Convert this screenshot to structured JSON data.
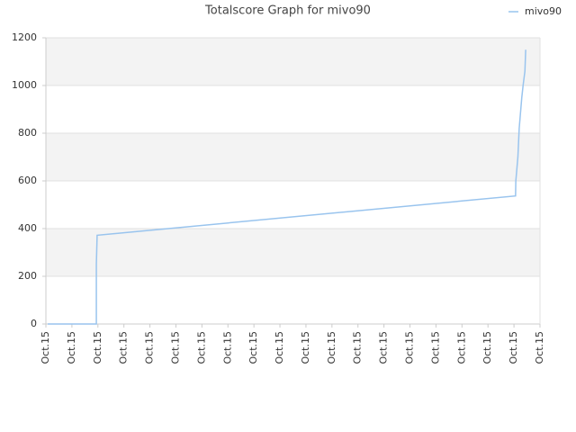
{
  "chart_data": {
    "type": "line",
    "title": "Totalscore Graph for mivo90",
    "x": [
      0.07,
      1.94,
      1.94,
      1.97,
      18.06,
      18.07,
      18.15,
      18.2,
      18.3,
      18.35,
      18.42,
      18.45
    ],
    "series": [
      {
        "name": "mivo90",
        "color": "#99c4ee",
        "values": [
          0,
          0,
          250,
          372,
          537,
          600,
          700,
          820,
          950,
          1000,
          1060,
          1150
        ]
      }
    ],
    "xlim": [
      0,
      19
    ],
    "xticks": [
      {
        "value": 0,
        "label": "Oct.15"
      },
      {
        "value": 1,
        "label": "Oct.15"
      },
      {
        "value": 2,
        "label": "Oct.15"
      },
      {
        "value": 3,
        "label": "Oct.15"
      },
      {
        "value": 4,
        "label": "Oct.15"
      },
      {
        "value": 5,
        "label": "Oct.15"
      },
      {
        "value": 6,
        "label": "Oct.15"
      },
      {
        "value": 7,
        "label": "Oct.15"
      },
      {
        "value": 8,
        "label": "Oct.15"
      },
      {
        "value": 9,
        "label": "Oct.15"
      },
      {
        "value": 10,
        "label": "Oct.15"
      },
      {
        "value": 11,
        "label": "Oct.15"
      },
      {
        "value": 12,
        "label": "Oct.15"
      },
      {
        "value": 13,
        "label": "Oct.15"
      },
      {
        "value": 14,
        "label": "Oct.15"
      },
      {
        "value": 15,
        "label": "Oct.15"
      },
      {
        "value": 16,
        "label": "Oct.15"
      },
      {
        "value": 17,
        "label": "Oct.15"
      },
      {
        "value": 18,
        "label": "Oct.15"
      },
      {
        "value": 19,
        "label": "Oct.15"
      }
    ],
    "ylim": [
      0,
      1200
    ],
    "yticks": [
      0,
      200,
      400,
      600,
      800,
      1000,
      1200
    ],
    "grid": true,
    "legend": "upper right"
  }
}
